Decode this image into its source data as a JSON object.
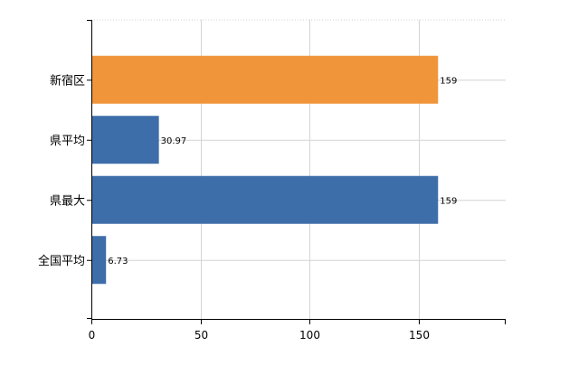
{
  "chart_data": {
    "type": "bar",
    "orientation": "horizontal",
    "categories": [
      "新宿区",
      "県平均",
      "県最大",
      "全国平均"
    ],
    "values": [
      159,
      30.97,
      159,
      6.73
    ],
    "value_labels": [
      "159",
      "30.97",
      "159",
      "6.73"
    ],
    "bar_colors": [
      "#f0953a",
      "#3e6eaa",
      "#3e6eaa",
      "#3e6eaa"
    ],
    "x_ticks": [
      0,
      50,
      100,
      150
    ],
    "x_tick_labels": [
      "0",
      "50",
      "100",
      "150"
    ],
    "xlim": [
      0,
      190
    ],
    "grid": true,
    "title": "",
    "xlabel": "",
    "ylabel": ""
  }
}
